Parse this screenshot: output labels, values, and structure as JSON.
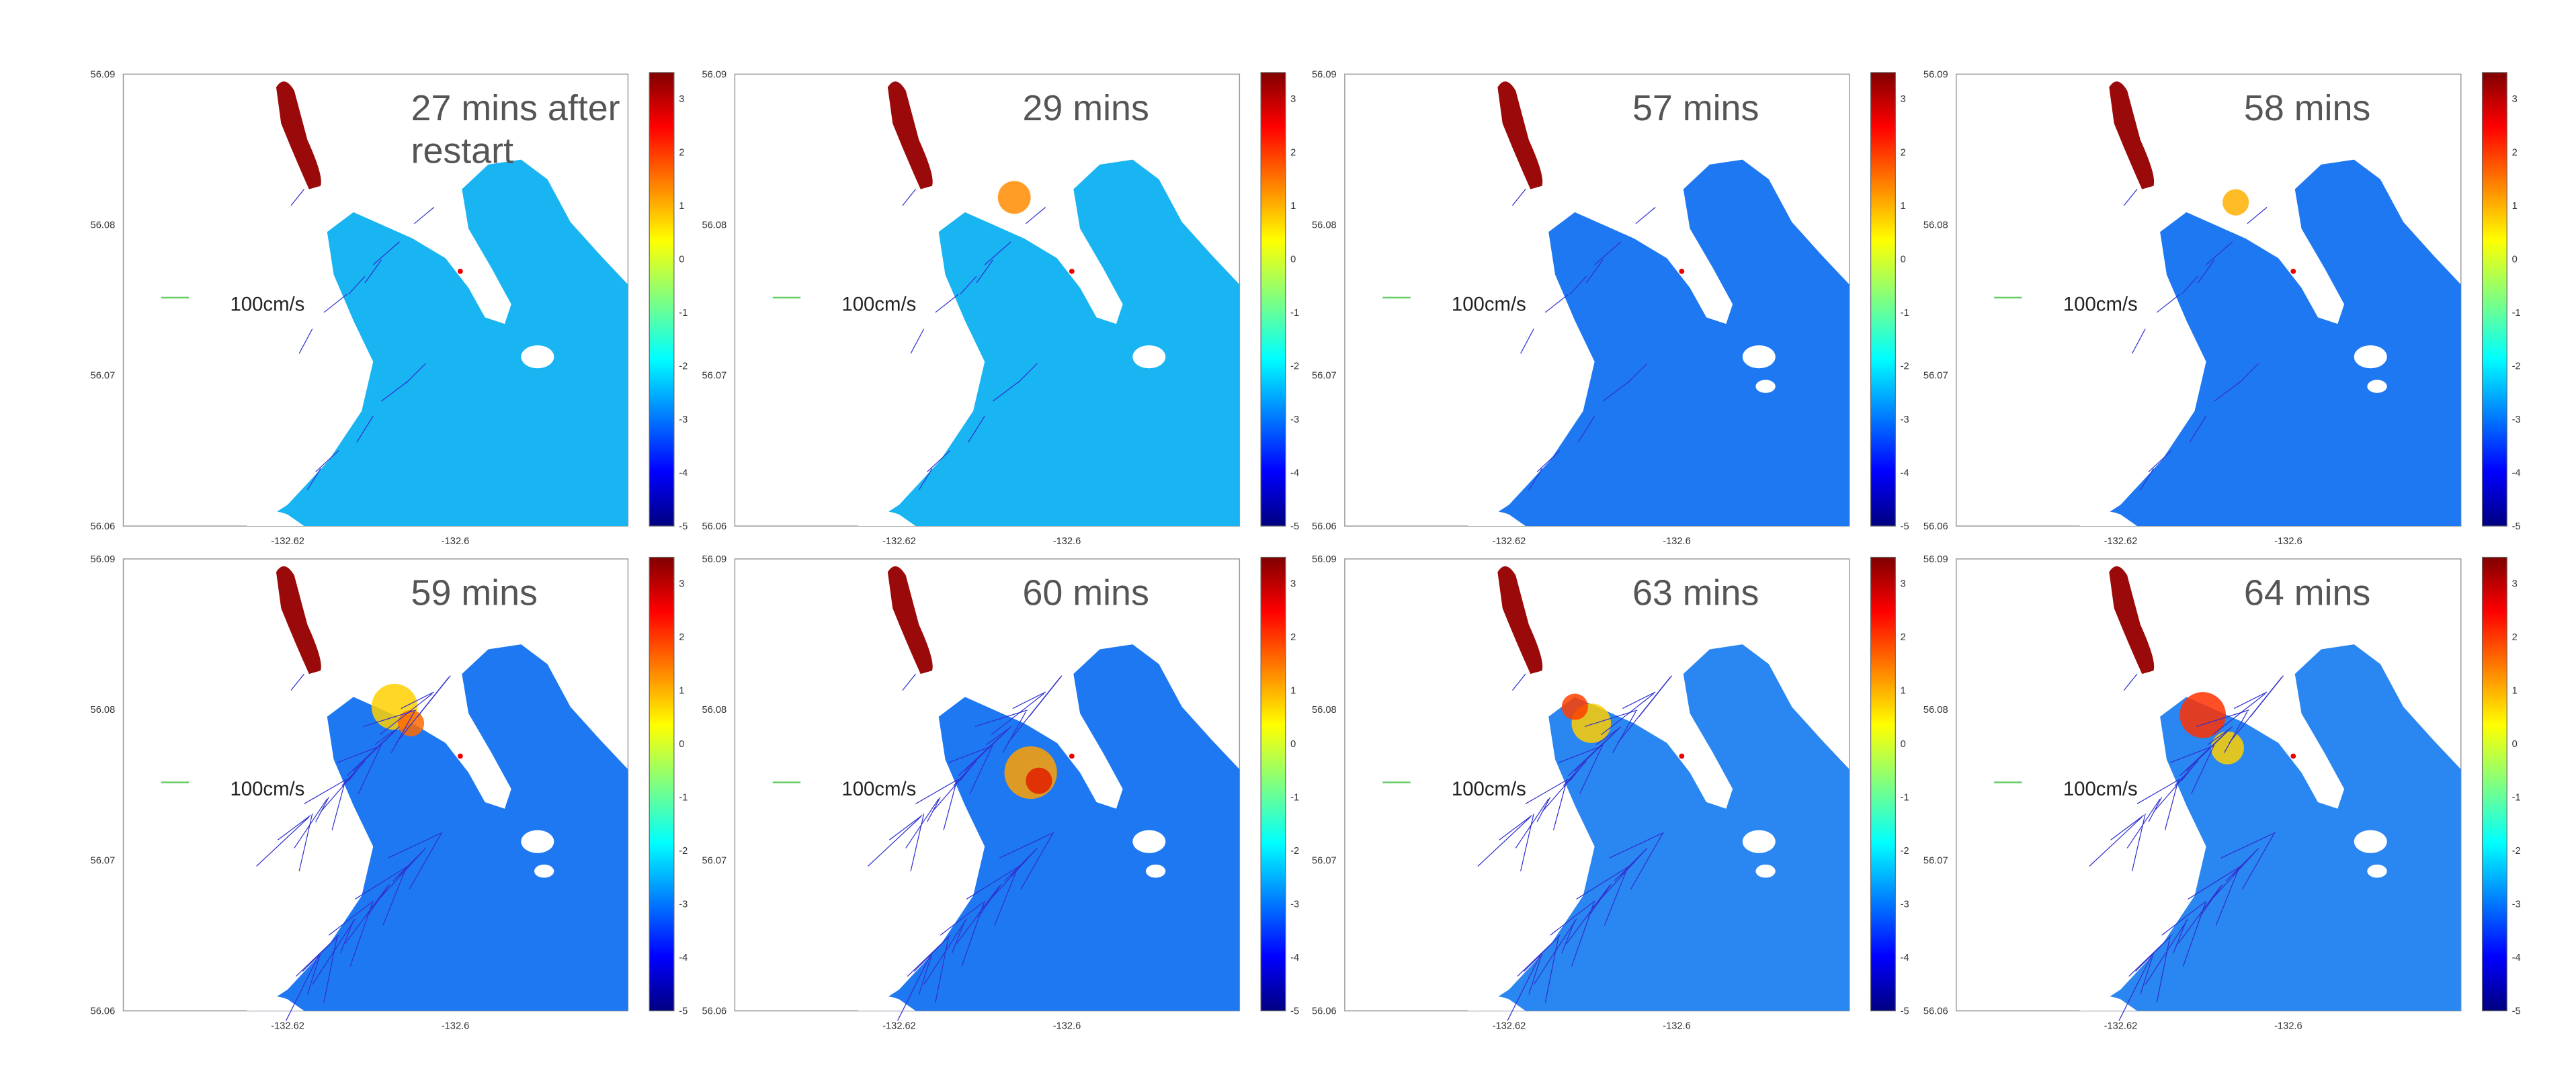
{
  "panels": [
    {
      "title": "27 mins after restart",
      "yticks": [
        "56.09",
        "56.08",
        "56.07",
        "56.06"
      ],
      "xticks": [
        "-132.62",
        "-132.6"
      ],
      "scale_label": "100cm/s",
      "colorbar_ticks": [
        "3",
        "2",
        "1",
        "0",
        "-1",
        "-2",
        "-3",
        "-4",
        "-5"
      ]
    },
    {
      "title": "29 mins",
      "yticks": [
        "56.09",
        "56.08",
        "56.07",
        "56.06"
      ],
      "xticks": [
        "-132.62",
        "-132.6"
      ],
      "scale_label": "100cm/s",
      "colorbar_ticks": [
        "3",
        "2",
        "1",
        "0",
        "-1",
        "-2",
        "-3",
        "-4",
        "-5"
      ]
    },
    {
      "title": "57 mins",
      "yticks": [
        "56.09",
        "56.08",
        "56.07",
        "56.06"
      ],
      "xticks": [
        "-132.62",
        "-132.6"
      ],
      "scale_label": "100cm/s",
      "colorbar_ticks": [
        "3",
        "2",
        "1",
        "0",
        "-1",
        "-2",
        "-3",
        "-4",
        "-5"
      ]
    },
    {
      "title": "58 mins",
      "yticks": [
        "56.09",
        "56.08",
        "56.07",
        "56.06"
      ],
      "xticks": [
        "-132.62",
        "-132.6"
      ],
      "scale_label": "100cm/s",
      "colorbar_ticks": [
        "3",
        "2",
        "1",
        "0",
        "-1",
        "-2",
        "-3",
        "-4",
        "-5"
      ]
    },
    {
      "title": "59 mins",
      "yticks": [
        "56.09",
        "56.08",
        "56.07",
        "56.06"
      ],
      "xticks": [
        "-132.62",
        "-132.6"
      ],
      "scale_label": "100cm/s",
      "colorbar_ticks": [
        "3",
        "2",
        "1",
        "0",
        "-1",
        "-2",
        "-3",
        "-4",
        "-5"
      ]
    },
    {
      "title": "60 mins",
      "yticks": [
        "56.09",
        "56.08",
        "56.07",
        "56.06"
      ],
      "xticks": [
        "-132.62",
        "-132.6"
      ],
      "scale_label": "100cm/s",
      "colorbar_ticks": [
        "3",
        "2",
        "1",
        "0",
        "-1",
        "-2",
        "-3",
        "-4",
        "-5"
      ]
    },
    {
      "title": "63 mins",
      "yticks": [
        "56.09",
        "56.08",
        "56.07",
        "56.06"
      ],
      "xticks": [
        "-132.62",
        "-132.6"
      ],
      "scale_label": "100cm/s",
      "colorbar_ticks": [
        "3",
        "2",
        "1",
        "0",
        "-1",
        "-2",
        "-3",
        "-4",
        "-5"
      ]
    },
    {
      "title": "64 mins",
      "yticks": [
        "56.09",
        "56.08",
        "56.07",
        "56.06"
      ],
      "xticks": [
        "-132.62",
        "-132.6"
      ],
      "scale_label": "100cm/s",
      "colorbar_ticks": [
        "3",
        "2",
        "1",
        "0",
        "-1",
        "-2",
        "-3",
        "-4",
        "-5"
      ]
    }
  ]
}
